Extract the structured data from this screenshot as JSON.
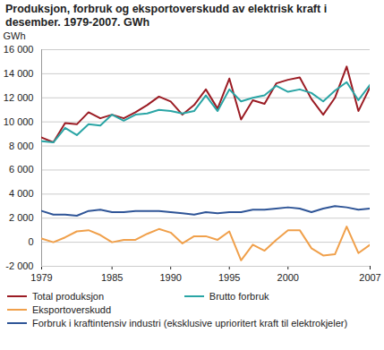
{
  "chart_data": {
    "type": "line",
    "title": "Produksjon, forbruk og eksportoverskudd av elektrisk kraft i desember. 1979-2007. GWh",
    "y_label": "GWh",
    "x": [
      1979,
      1980,
      1981,
      1982,
      1983,
      1984,
      1985,
      1986,
      1987,
      1988,
      1989,
      1990,
      1991,
      1992,
      1993,
      1994,
      1995,
      1996,
      1997,
      1998,
      1999,
      2000,
      2001,
      2002,
      2003,
      2004,
      2005,
      2006,
      2007
    ],
    "xlim": [
      1979,
      2007
    ],
    "xticks": [
      1979,
      1985,
      1990,
      1995,
      2000,
      2007
    ],
    "ylim": [
      -2000,
      16000
    ],
    "yticks": [
      {
        "value": -2000,
        "label": "-2 000"
      },
      0,
      {
        "value": 2000,
        "label": "2 000"
      },
      {
        "value": 4000,
        "label": "4 000"
      },
      {
        "value": 6000,
        "label": "6 000"
      },
      {
        "value": 8000,
        "label": "8 000"
      },
      {
        "value": 10000,
        "label": "10 000"
      },
      {
        "value": 12000,
        "label": "12 000"
      },
      {
        "value": 14000,
        "label": "14 000"
      },
      {
        "value": 16000,
        "label": "16 000"
      }
    ],
    "grid": true,
    "legend": "bottom",
    "series": [
      {
        "name": "Total produksjon",
        "color": "#9b1c24",
        "values": [
          8700,
          8300,
          9900,
          9800,
          10800,
          10300,
          10600,
          10300,
          10800,
          11400,
          12100,
          11700,
          10600,
          11400,
          12700,
          11100,
          13600,
          10200,
          11800,
          11500,
          13200,
          13500,
          13700,
          11900,
          10600,
          12000,
          14600,
          10900,
          12900
        ]
      },
      {
        "name": "Brutto forbruk",
        "color": "#2aa5a5",
        "values": [
          8400,
          8300,
          9500,
          8900,
          9800,
          9700,
          10600,
          10100,
          10600,
          10700,
          11000,
          10900,
          10700,
          10900,
          12200,
          10900,
          12700,
          11700,
          12000,
          12200,
          13000,
          12500,
          12700,
          12400,
          11700,
          12600,
          13300,
          11800,
          13100
        ]
      },
      {
        "name": "Eksportoverskudd",
        "color": "#f0a04b",
        "values": [
          300,
          0,
          400,
          900,
          1000,
          600,
          0,
          200,
          200,
          700,
          1100,
          800,
          -100,
          500,
          500,
          200,
          900,
          -1500,
          -200,
          -700,
          200,
          1000,
          1000,
          -500,
          -1100,
          -1000,
          1300,
          -900,
          -200
        ]
      },
      {
        "name": "Forbruk i kraftintensiv industri (eksklusive uprioritert kraft til elektrokjeler)",
        "color": "#2f5597",
        "values": [
          2600,
          2300,
          2300,
          2200,
          2600,
          2700,
          2500,
          2500,
          2600,
          2600,
          2600,
          2500,
          2400,
          2300,
          2500,
          2400,
          2500,
          2500,
          2700,
          2700,
          2800,
          2900,
          2800,
          2500,
          2800,
          3000,
          2900,
          2700,
          2800
        ]
      }
    ]
  }
}
